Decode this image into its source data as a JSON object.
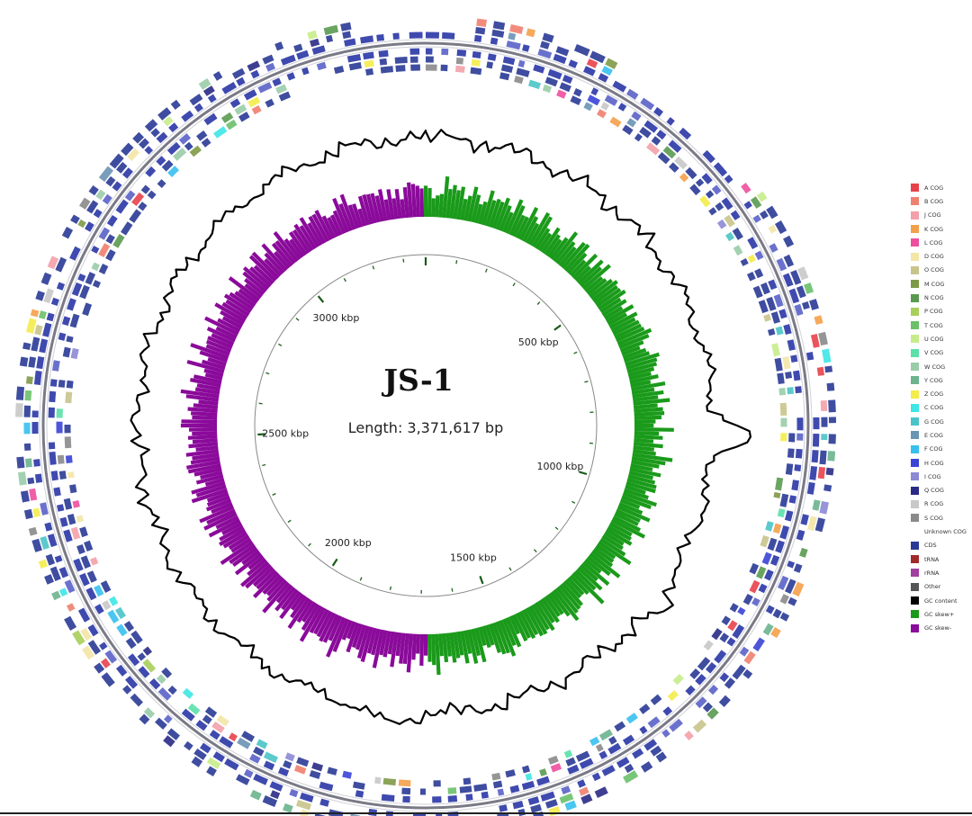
{
  "diagram": {
    "title": "JS-1",
    "length_label": "Length: 3,371,617 bp",
    "genome_length_bp": 3371617,
    "scale_labels": [
      {
        "text": "500 kbp",
        "bp": 500000
      },
      {
        "text": "1000 kbp",
        "bp": 1000000
      },
      {
        "text": "1500 kbp",
        "bp": 1500000
      },
      {
        "text": "2000 kbp",
        "bp": 2000000
      },
      {
        "text": "2500 kbp",
        "bp": 2500000
      },
      {
        "text": "3000 kbp",
        "bp": 3000000
      }
    ]
  },
  "legend": [
    {
      "label": "A COG",
      "color": "#e8414a"
    },
    {
      "label": "B COG",
      "color": "#f0806f"
    },
    {
      "label": "J COG",
      "color": "#f4a0a8"
    },
    {
      "label": "K COG",
      "color": "#f4a04a"
    },
    {
      "label": "L COG",
      "color": "#ee4e9e"
    },
    {
      "label": "D COG",
      "color": "#f3e6a6"
    },
    {
      "label": "O COG",
      "color": "#c9c48c"
    },
    {
      "label": "M COG",
      "color": "#7e9a46"
    },
    {
      "label": "N COG",
      "color": "#5a9a50"
    },
    {
      "label": "P COG",
      "color": "#a8cf5a"
    },
    {
      "label": "T COG",
      "color": "#6cc06a"
    },
    {
      "label": "U COG",
      "color": "#c6ec8a"
    },
    {
      "label": "V COG",
      "color": "#5ae0a8"
    },
    {
      "label": "W COG",
      "color": "#9acca8"
    },
    {
      "label": "Y COG",
      "color": "#6ab48e"
    },
    {
      "label": "Z COG",
      "color": "#f4ec4a"
    },
    {
      "label": "C COG",
      "color": "#3ee6e6"
    },
    {
      "label": "G COG",
      "color": "#4ac4c8"
    },
    {
      "label": "E COG",
      "color": "#6a94b4"
    },
    {
      "label": "F COG",
      "color": "#36c0ee"
    },
    {
      "label": "H COG",
      "color": "#3a44d6"
    },
    {
      "label": "I COG",
      "color": "#8c88d6"
    },
    {
      "label": "Q COG",
      "color": "#2a2a86"
    },
    {
      "label": "R COG",
      "color": "#c8c8c8"
    },
    {
      "label": "S COG",
      "color": "#8a8a8a"
    },
    {
      "label": "Unknown COG",
      "color": "#ffffff"
    },
    {
      "label": "CDS",
      "color": "#2a3a96"
    },
    {
      "label": "tRNA",
      "color": "#a02a2a"
    },
    {
      "label": "rRNA",
      "color": "#a040a0"
    },
    {
      "label": "Other",
      "color": "#555555"
    },
    {
      "label": "GC content",
      "color": "#000000"
    },
    {
      "label": "GC skew+",
      "color": "#1a9a1a"
    },
    {
      "label": "GC skew-",
      "color": "#8a0a9a"
    }
  ]
}
